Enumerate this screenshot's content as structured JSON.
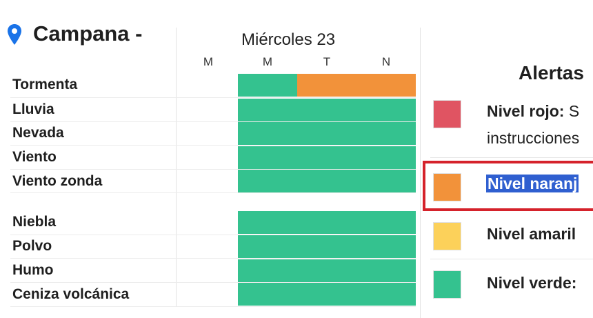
{
  "location": {
    "title": "Campana -",
    "icon": "location-pin-icon"
  },
  "forecast": {
    "day_label": "Miércoles 23",
    "periods": [
      "M",
      "M",
      "T",
      "N"
    ],
    "rows": [
      {
        "label": "Tormenta",
        "levels": [
          "none",
          "green",
          "orange",
          "orange"
        ]
      },
      {
        "label": "Lluvia",
        "levels": [
          "none",
          "green",
          "green",
          "green"
        ]
      },
      {
        "label": "Nevada",
        "levels": [
          "none",
          "green",
          "green",
          "green"
        ]
      },
      {
        "label": "Viento",
        "levels": [
          "none",
          "green",
          "green",
          "green"
        ]
      },
      {
        "label": "Viento zonda",
        "levels": [
          "none",
          "green",
          "green",
          "green"
        ]
      },
      {
        "label": "Niebla",
        "levels": [
          "none",
          "green",
          "green",
          "green"
        ]
      },
      {
        "label": "Polvo",
        "levels": [
          "none",
          "green",
          "green",
          "green"
        ]
      },
      {
        "label": "Humo",
        "levels": [
          "none",
          "green",
          "green",
          "green"
        ]
      },
      {
        "label": "Ceniza volcánica",
        "levels": [
          "none",
          "green",
          "green",
          "green"
        ]
      }
    ]
  },
  "colors": {
    "green": "#34c28f",
    "orange": "#f2923a",
    "red": "#e05462",
    "yellow": "#fcd15a",
    "pin": "#1a73e8",
    "highlight": "#2f5fd0"
  },
  "alerts": {
    "title": "Alertas",
    "levels": [
      {
        "name": "Nivel rojo:",
        "text": " S",
        "line2": "instrucciones",
        "color": "red"
      },
      {
        "name": "Nivel naranj",
        "color": "orange",
        "highlighted": true
      },
      {
        "name": "Nivel amaril",
        "color": "yellow"
      },
      {
        "name": "Nivel verde:",
        "color": "green"
      }
    ]
  }
}
